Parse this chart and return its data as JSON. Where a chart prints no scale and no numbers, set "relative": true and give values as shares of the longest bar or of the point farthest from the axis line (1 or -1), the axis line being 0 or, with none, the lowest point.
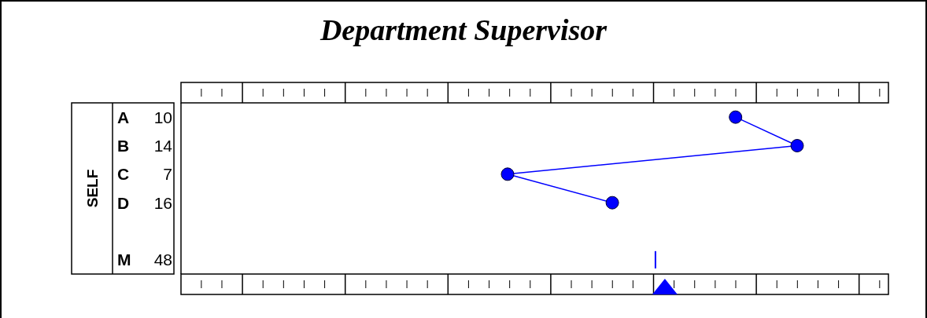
{
  "chart_data": {
    "type": "line",
    "title": "Department Supervisor",
    "ylabel": "SELF",
    "orientation": "horizontal",
    "relative": true,
    "categories": [
      "A",
      "B",
      "C",
      "D",
      null,
      "M"
    ],
    "series": [
      {
        "color": "#0000ff",
        "values": [
          0.9,
          1,
          0.53,
          0.7,
          null,
          null
        ]
      }
    ],
    "ref_lines": [
      {
        "axis": "x",
        "value": 0.77,
        "color": "#0000ff"
      }
    ],
    "annotations": [
      "10",
      "14",
      "7",
      "16",
      "48"
    ],
    "marker": "circle",
    "tick_labels": "y"
  }
}
